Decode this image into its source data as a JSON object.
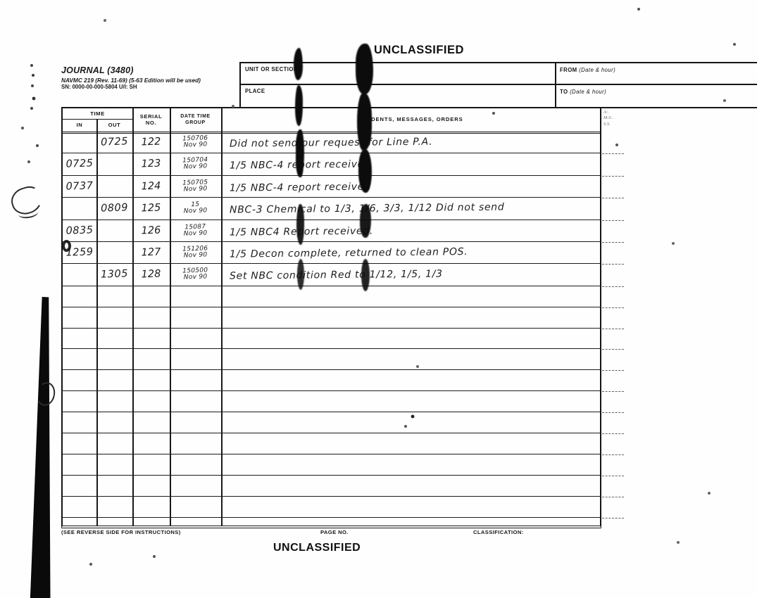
{
  "classification": {
    "top_banner": "UNCLASSIFIED",
    "bottom_banner": "UNCLASSIFIED"
  },
  "form": {
    "title": "JOURNAL (3480)",
    "edition_line": "NAVMC 219 (Rev. 11-69) (5-63 Edition will be used)",
    "stock_line": "SN: 0000-00-000-5804  U/I: SH",
    "unit_or_section_label": "UNIT OR SECTION",
    "place_label": "PLACE",
    "from_label_prefix": "FROM ",
    "from_label_suffix": "(Date & hour)",
    "to_label_prefix": "TO ",
    "to_label_suffix": "(Date & hour)"
  },
  "table": {
    "headers": {
      "time": "TIME",
      "in": "IN",
      "out": "OUT",
      "serial": "SERIAL NO.",
      "dtg": "DATE TIME GROUP",
      "incidents": "INCIDENTS, MESSAGES, ORDERS",
      "edge_notes": [
        "A:.",
        "M.S:.",
        "S.S."
      ]
    },
    "rows": [
      {
        "in": "",
        "out": "0725",
        "serial": "122",
        "dtg1": "150706",
        "dtg2": "Nov 90",
        "text": "Did not send our request for Line P.A."
      },
      {
        "in": "0725",
        "out": "",
        "serial": "123",
        "dtg1": "150704",
        "dtg2": "Nov 90",
        "text": "1/5 NBC-4 report received"
      },
      {
        "in": "0737",
        "out": "",
        "serial": "124",
        "dtg1": "150705",
        "dtg2": "Nov 90",
        "text": "1/5 NBC-4 report received"
      },
      {
        "in": "",
        "out": "0809",
        "serial": "125",
        "dtg1": "15",
        "dtg2": "Nov 90",
        "text": "NBC-3 Chemical to 1/3, 1/6, 3/3, 1/12  Did not send"
      },
      {
        "in": "0835",
        "out": "",
        "serial": "126",
        "dtg1": "15087",
        "dtg2": "Nov 90",
        "text": "1/5 NBC4 Report received."
      },
      {
        "in": "1259",
        "out": "",
        "serial": "127",
        "dtg1": "151206",
        "dtg2": "Nov 90",
        "text": "1/5 Decon complete, returned to clean POS."
      },
      {
        "in": "",
        "out": "1305",
        "serial": "128",
        "dtg1": "150500",
        "dtg2": "Nov 90",
        "text": "Set NBC condition Red to 1/12, 1/5, 1/3"
      },
      {
        "in": "",
        "out": "",
        "serial": "",
        "dtg1": "",
        "dtg2": "",
        "text": ""
      },
      {
        "in": "",
        "out": "",
        "serial": "",
        "dtg1": "",
        "dtg2": "",
        "text": ""
      },
      {
        "in": "",
        "out": "",
        "serial": "",
        "dtg1": "",
        "dtg2": "",
        "text": ""
      },
      {
        "in": "",
        "out": "",
        "serial": "",
        "dtg1": "",
        "dtg2": "",
        "text": ""
      },
      {
        "in": "",
        "out": "",
        "serial": "",
        "dtg1": "",
        "dtg2": "",
        "text": ""
      },
      {
        "in": "",
        "out": "",
        "serial": "",
        "dtg1": "",
        "dtg2": "",
        "text": ""
      },
      {
        "in": "",
        "out": "",
        "serial": "",
        "dtg1": "",
        "dtg2": "",
        "text": ""
      },
      {
        "in": "",
        "out": "",
        "serial": "",
        "dtg1": "",
        "dtg2": "",
        "text": ""
      },
      {
        "in": "",
        "out": "",
        "serial": "",
        "dtg1": "",
        "dtg2": "",
        "text": ""
      },
      {
        "in": "",
        "out": "",
        "serial": "",
        "dtg1": "",
        "dtg2": "",
        "text": ""
      },
      {
        "in": "",
        "out": "",
        "serial": "",
        "dtg1": "",
        "dtg2": "",
        "text": ""
      }
    ]
  },
  "footer": {
    "instructions": "(SEE REVERSE SIDE FOR INSTRUCTIONS)",
    "page_no_label": "PAGE NO.",
    "classification_label": "CLASSIFICATION:"
  },
  "colors": {
    "ink": "#1a1a1a",
    "paper": "#fefefe",
    "artifact": "#0c0c0c"
  }
}
